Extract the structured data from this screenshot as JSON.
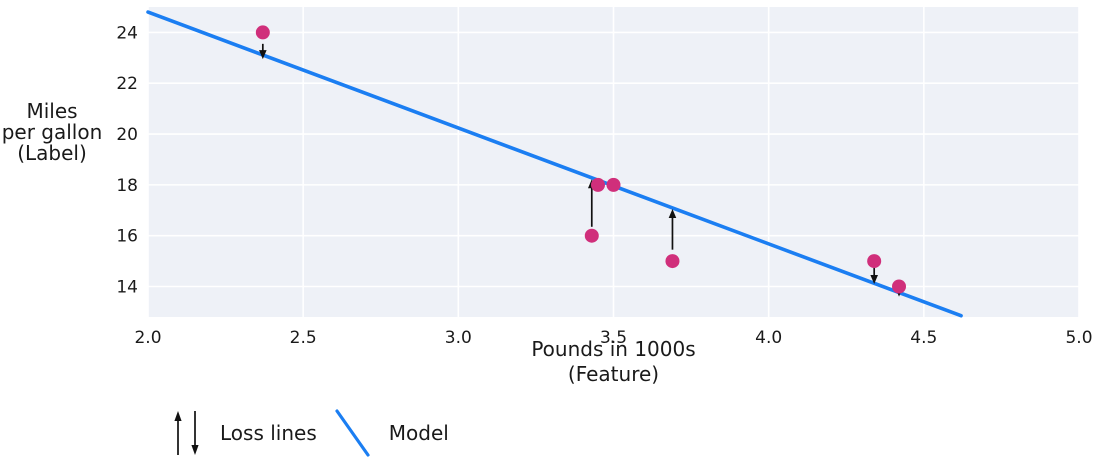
{
  "chart_data": {
    "type": "scatter",
    "title": "",
    "xlabel_lines": [
      "Pounds in 1000s",
      "(Feature)"
    ],
    "ylabel_lines": [
      "Miles",
      "per gallon",
      "(Label)"
    ],
    "xlim": [
      2.0,
      5.0
    ],
    "ylim": [
      12.8,
      25.0
    ],
    "x_ticks": [
      2.0,
      2.5,
      3.0,
      3.5,
      4.0,
      4.5,
      5.0
    ],
    "x_tick_labels": [
      "2.0",
      "2.5",
      "3.0",
      "3.5",
      "4.0",
      "4.5",
      "5.0"
    ],
    "y_ticks": [
      14,
      16,
      18,
      20,
      22,
      24
    ],
    "y_tick_labels": [
      "14",
      "16",
      "18",
      "20",
      "22",
      "24"
    ],
    "grid": true,
    "points": [
      {
        "x": 2.37,
        "y": 24
      },
      {
        "x": 3.43,
        "y": 16
      },
      {
        "x": 3.45,
        "y": 18
      },
      {
        "x": 3.5,
        "y": 18
      },
      {
        "x": 3.69,
        "y": 15
      },
      {
        "x": 4.34,
        "y": 15
      },
      {
        "x": 4.42,
        "y": 14
      }
    ],
    "model_line": {
      "x1": 2.0,
      "y1": 24.8,
      "x2": 4.62,
      "y2": 12.85
    },
    "loss_arrows": [
      {
        "x": 2.37,
        "from": 23.55,
        "to": 22.95,
        "direction": "down"
      },
      {
        "x": 3.43,
        "from": 16.35,
        "to": 18.22,
        "direction": "up"
      },
      {
        "x": 3.69,
        "from": 15.45,
        "to": 17.05,
        "direction": "up"
      },
      {
        "x": 4.34,
        "from": 14.73,
        "to": 14.1,
        "direction": "down"
      },
      {
        "x": 4.42,
        "from": 13.95,
        "to": 13.6,
        "direction": "down"
      }
    ],
    "legend": [
      {
        "symbol": "loss-arrows",
        "label": "Loss lines"
      },
      {
        "symbol": "model-line",
        "label": "Model"
      }
    ],
    "colors": {
      "point": "#d02f7b",
      "model_line": "#1b7ef2",
      "plot_bg": "#eef1f7",
      "grid": "#ffffff",
      "text": "#1a1a1a",
      "arrow": "#111111"
    }
  }
}
